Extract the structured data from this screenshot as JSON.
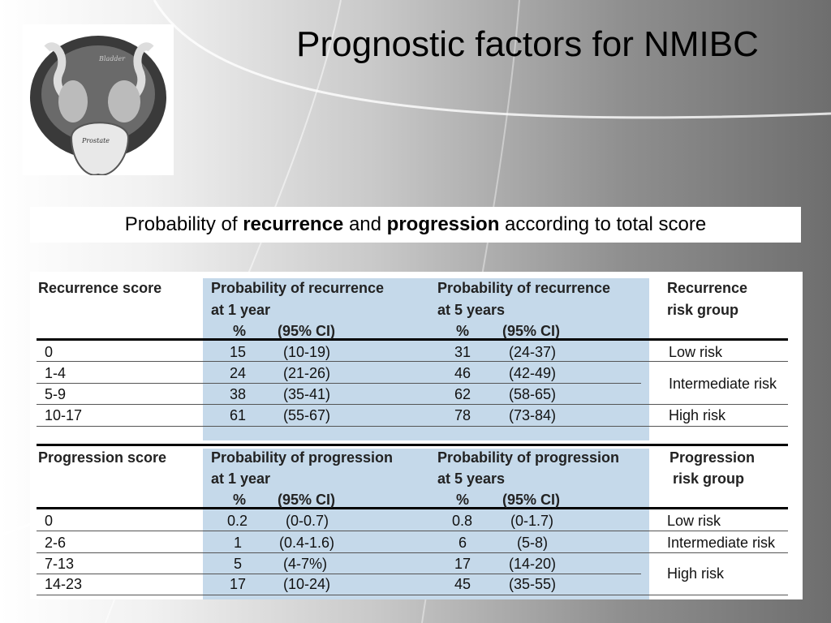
{
  "title": "Prognostic factors for NMIBC",
  "subtitle": {
    "pre": "Probability of ",
    "bold1": "recurrence",
    "mid": " and ",
    "bold2": "progression",
    "post": " according to total score"
  },
  "logo": {
    "labels": [
      "Bladder",
      "Prostate"
    ]
  },
  "recurrence_table": {
    "headers": {
      "score": "Recurrence score",
      "p1_line1": "Probability of recurrence",
      "p1_line2": "at 1 year",
      "p5_line1": "Probability of recurrence",
      "p5_line2": "at 5 years",
      "pct": "%",
      "ci": "(95% CI)",
      "group_line1": "Recurrence",
      "group_line2": "risk group"
    },
    "rows": [
      {
        "score": "0",
        "p1": "15",
        "ci1": "(10-19)",
        "p5": "31",
        "ci5": "(24-37)"
      },
      {
        "score": "1-4",
        "p1": "24",
        "ci1": "(21-26)",
        "p5": "46",
        "ci5": "(42-49)"
      },
      {
        "score": "5-9",
        "p1": "38",
        "ci1": "(35-41)",
        "p5": "62",
        "ci5": "(58-65)"
      },
      {
        "score": "10-17",
        "p1": "61",
        "ci1": "(55-67)",
        "p5": "78",
        "ci5": "(73-84)"
      }
    ],
    "groups": [
      "Low risk",
      "Intermediate risk",
      "High risk"
    ]
  },
  "progression_table": {
    "headers": {
      "score": "Progression score",
      "p1_line1": "Probability of progression",
      "p1_line2": "at 1 year",
      "p5_line1": "Probability of progression",
      "p5_line2": "at 5 years",
      "pct": "%",
      "ci": "(95% CI)",
      "group_line1": "Progression",
      "group_line2": "risk group"
    },
    "rows": [
      {
        "score": "0",
        "p1": "0.2",
        "ci1": "(0-0.7)",
        "p5": "0.8",
        "ci5": "(0-1.7)"
      },
      {
        "score": "2-6",
        "p1": "1",
        "ci1": "(0.4-1.6)",
        "p5": "6",
        "ci5": "(5-8)"
      },
      {
        "score": "7-13",
        "p1": "5",
        "ci1": "(4-7%)",
        "p5": "17",
        "ci5": "(14-20)"
      },
      {
        "score": "14-23",
        "p1": "17",
        "ci1": "(10-24)",
        "p5": "45",
        "ci5": "(35-55)"
      }
    ],
    "groups": [
      "Low risk",
      "Intermediate risk",
      "High risk"
    ]
  },
  "colors": {
    "table_blue": "#c5d9ea"
  }
}
